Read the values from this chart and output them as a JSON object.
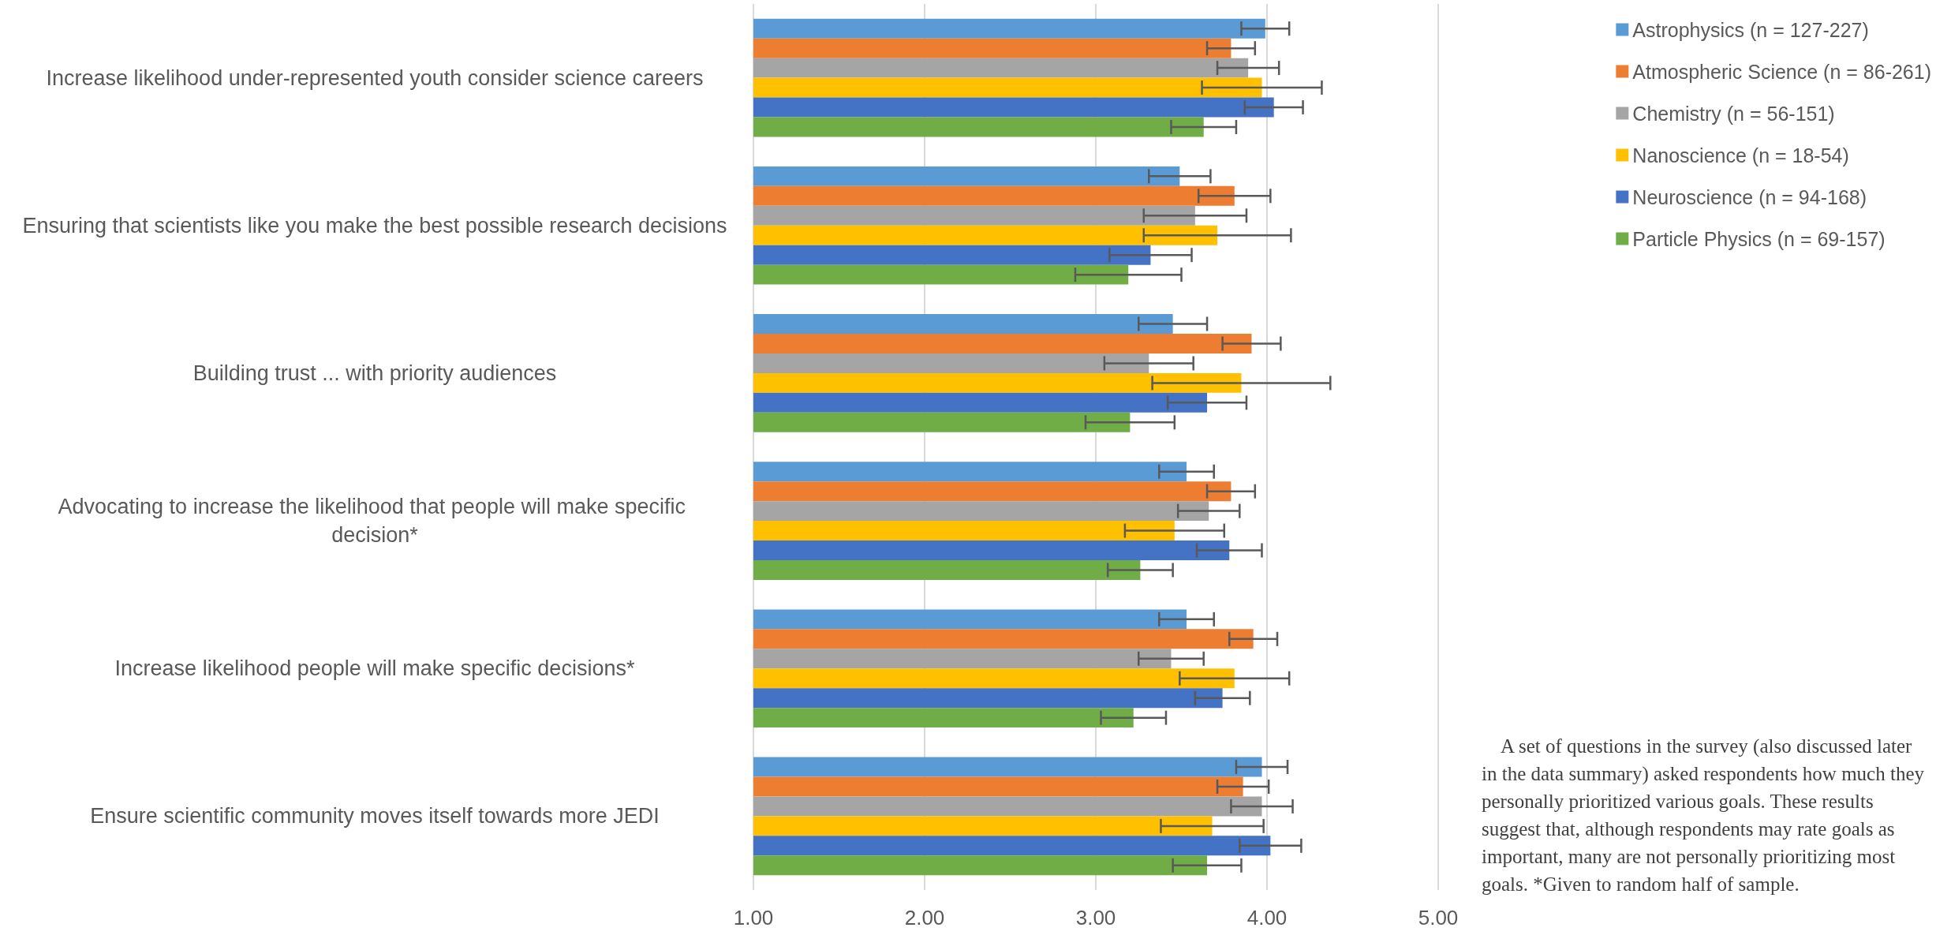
{
  "chart_data": {
    "type": "bar",
    "orientation": "horizontal",
    "categories": [
      "Increase likelihood under-represented youth consider science careers",
      "Ensuring that scientists like you make the best possible research decisions",
      "Building trust ... with priority audiences",
      "Advocating to increase the likelihood that people will make specific decision*",
      "Increase likelihood people will make specific decisions*",
      "Ensure scientific community moves itself towards more JEDI"
    ],
    "series": [
      {
        "name": "Astrophysics (n = 127-227)",
        "color": "#5b9bd5",
        "values": [
          3.99,
          3.49,
          3.45,
          3.53,
          3.53,
          3.97
        ],
        "errors": [
          0.14,
          0.18,
          0.2,
          0.16,
          0.16,
          0.15
        ]
      },
      {
        "name": "Atmospheric Science (n = 86-261)",
        "color": "#ed7d31",
        "values": [
          3.79,
          3.81,
          3.91,
          3.79,
          3.92,
          3.86
        ],
        "errors": [
          0.14,
          0.21,
          0.17,
          0.14,
          0.14,
          0.15
        ]
      },
      {
        "name": "Chemistry (n = 56-151)",
        "color": "#a5a5a5",
        "values": [
          3.89,
          3.58,
          3.31,
          3.66,
          3.44,
          3.97
        ],
        "errors": [
          0.18,
          0.3,
          0.26,
          0.18,
          0.19,
          0.18
        ]
      },
      {
        "name": "Nanoscience (n = 18-54)",
        "color": "#ffc000",
        "values": [
          3.97,
          3.71,
          3.85,
          3.46,
          3.81,
          3.68
        ],
        "errors": [
          0.35,
          0.43,
          0.52,
          0.29,
          0.32,
          0.3
        ]
      },
      {
        "name": "Neuroscience (n = 94-168)",
        "color": "#4472c4",
        "values": [
          4.04,
          3.32,
          3.65,
          3.78,
          3.74,
          4.02
        ],
        "errors": [
          0.17,
          0.24,
          0.23,
          0.19,
          0.16,
          0.18
        ]
      },
      {
        "name": "Particle Physics (n = 69-157)",
        "color": "#70ad47",
        "values": [
          3.63,
          3.19,
          3.2,
          3.26,
          3.22,
          3.65
        ],
        "errors": [
          0.19,
          0.31,
          0.26,
          0.19,
          0.19,
          0.2
        ]
      }
    ],
    "xlim": [
      1,
      5
    ],
    "xticks": [
      {
        "value": 1,
        "label": "1.00"
      },
      {
        "value": 2,
        "label": "2.00"
      },
      {
        "value": 3,
        "label": "3.00"
      },
      {
        "value": 4,
        "label": "4.00"
      },
      {
        "value": 5,
        "label": "5.00"
      }
    ],
    "grid": "x",
    "legend": "right",
    "annotations": [
      "A set of questions in the survey (also discussed later in the data summary) asked respondents how much they personally prioritized various goals. These results suggest that, although respondents may rate goals as important, many are not personally prioritizing most goals. *Given to random half of sample."
    ]
  }
}
